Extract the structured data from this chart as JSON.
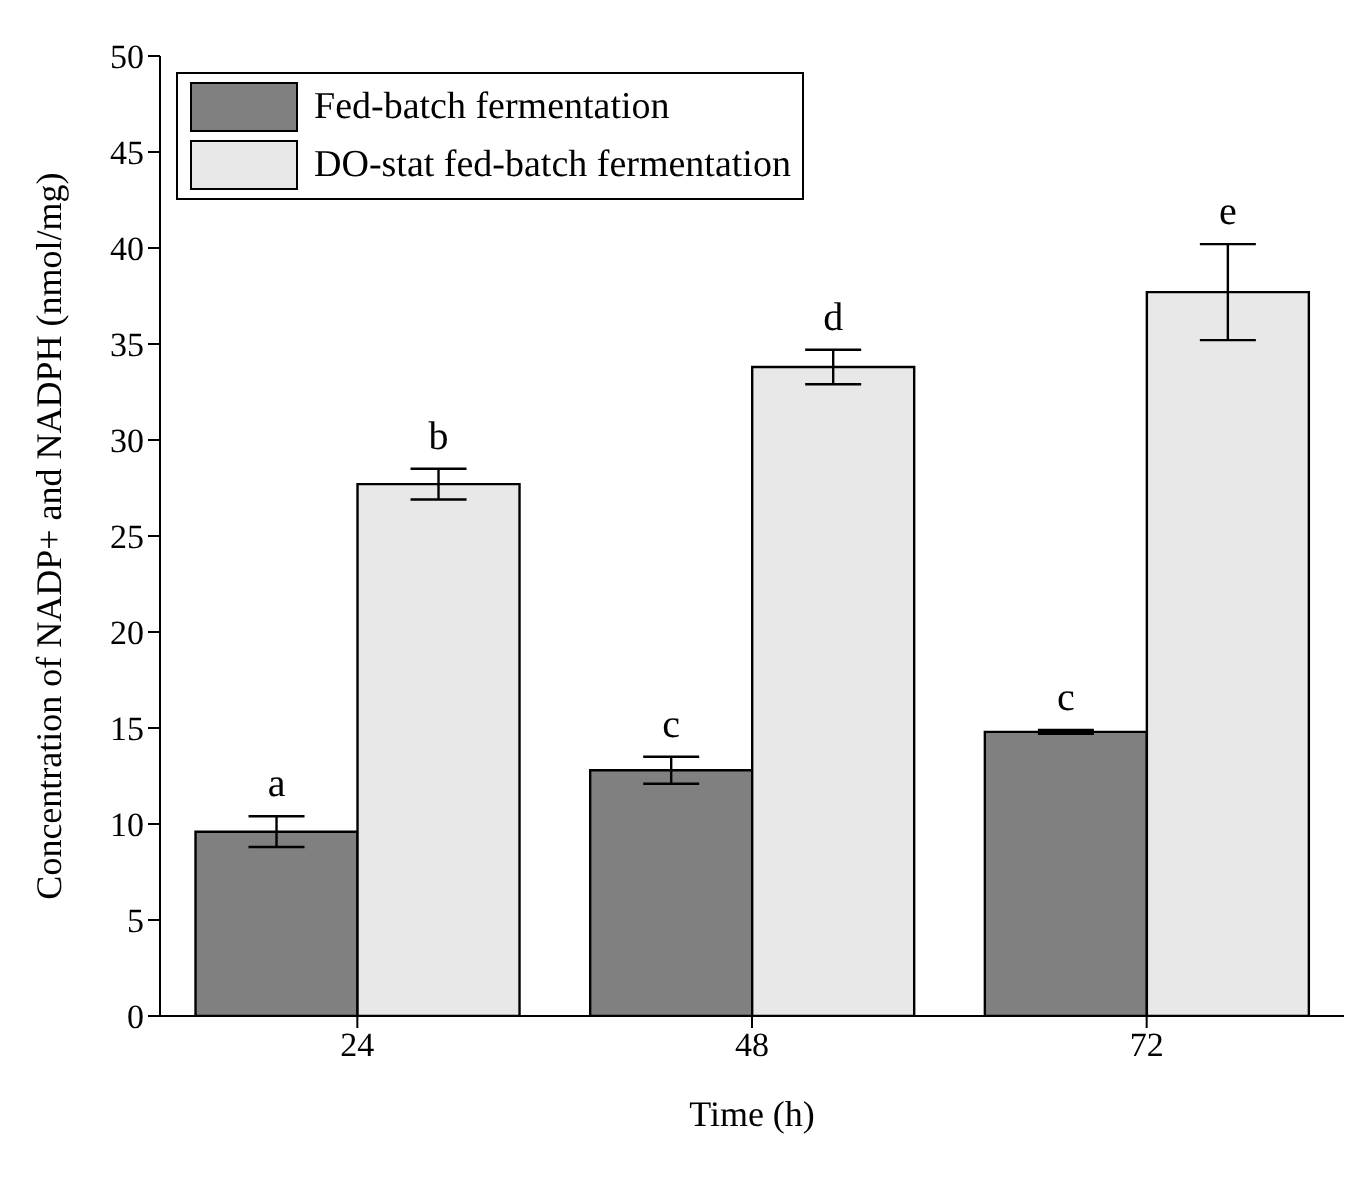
{
  "chart_data": {
    "type": "bar",
    "xlabel": "Time (h)",
    "ylabel": "Concentration of NADP+ and NADPH (nmol/mg)",
    "categories": [
      "24",
      "48",
      "72"
    ],
    "series": [
      {
        "name": "Fed-batch fermentation",
        "color": "#808080",
        "values": [
          9.6,
          12.8,
          14.8
        ],
        "errors": [
          0.8,
          0.7,
          0.1
        ],
        "value_labels": [
          "a",
          "c",
          "c"
        ]
      },
      {
        "name": "DO-stat fed-batch fermentation",
        "color": "#e8e8e8",
        "values": [
          27.7,
          33.8,
          37.7
        ],
        "errors": [
          0.8,
          0.9,
          2.5
        ],
        "value_labels": [
          "b",
          "d",
          "e"
        ]
      }
    ],
    "ylim": [
      0,
      50
    ],
    "yticks": [
      0,
      5,
      10,
      15,
      20,
      25,
      30,
      35,
      40,
      45,
      50
    ],
    "grid": false,
    "legend": "top left"
  }
}
